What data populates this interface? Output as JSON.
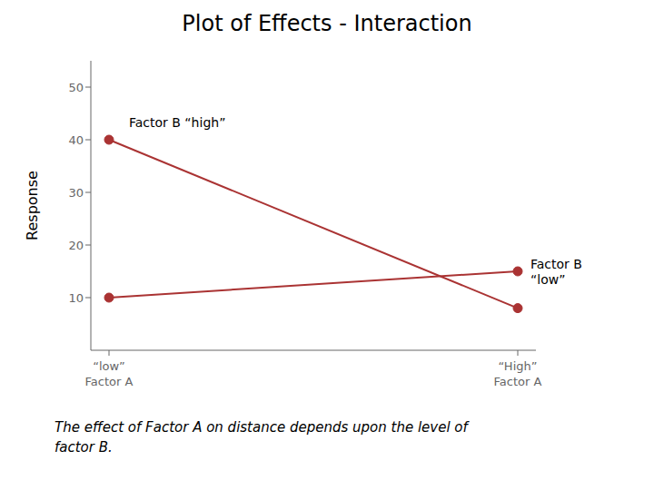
{
  "chart_data": {
    "type": "line",
    "title": "Plot of Effects - Interaction",
    "y_label": "Response",
    "categories": [
      "“low”\nFactor A",
      "“High”\nFactor A"
    ],
    "series": [
      {
        "name": "Factor B “high”",
        "color": "#aa3333",
        "marker": "circle",
        "values": [
          40,
          8
        ]
      },
      {
        "name": "Factor B\n“low”",
        "color": "#aa3333",
        "marker": "circle",
        "values": [
          10,
          15
        ]
      }
    ],
    "ylim": [
      0,
      55
    ],
    "yticks": [
      10,
      20,
      30,
      40,
      50
    ],
    "grid": false,
    "footnote": "The effect of Factor A on distance depends upon the level of\nfactor B."
  }
}
